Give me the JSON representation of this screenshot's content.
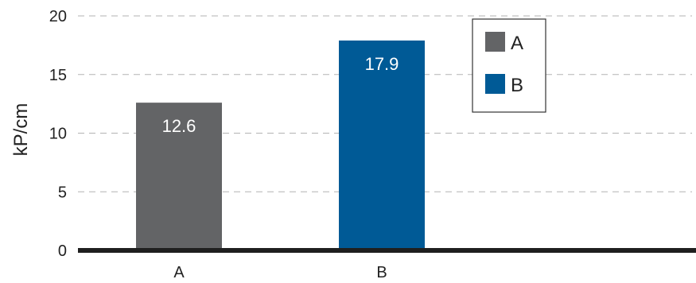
{
  "chart_data": {
    "type": "bar",
    "title": "",
    "xlabel": "",
    "ylabel": "kP/cm",
    "ylim": [
      0,
      20
    ],
    "yticks": [
      0,
      5,
      10,
      15,
      20
    ],
    "grid": true,
    "legend_position": "top-right",
    "categories": [
      "A",
      "B"
    ],
    "values": [
      12.6,
      17.9
    ],
    "data_labels": [
      "12.6",
      "17.9"
    ],
    "colors": [
      "#636466",
      "#005a96"
    ],
    "legend": [
      {
        "label": "A",
        "color": "#636466"
      },
      {
        "label": "B",
        "color": "#005a96"
      }
    ]
  }
}
